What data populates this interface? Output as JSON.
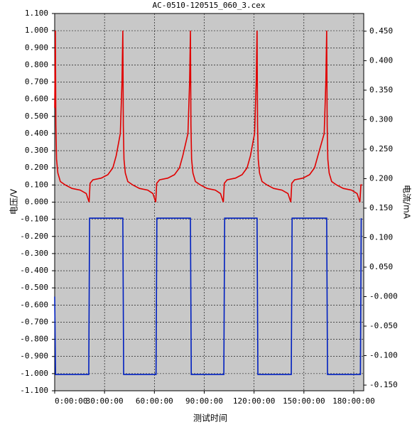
{
  "chart_data": {
    "type": "line",
    "title": "AC-0510-120515_060_3.cex",
    "x_label": "测试时间",
    "y_label": "电压/V",
    "y2_label": "电流/mA",
    "xlim": [
      0,
      186
    ],
    "xticks": [
      {
        "value": 0,
        "label": "0:00:00"
      },
      {
        "value": 30,
        "label": "30:00:00"
      },
      {
        "value": 60,
        "label": "60:00:00"
      },
      {
        "value": 90,
        "label": "90:00:00"
      },
      {
        "value": 120,
        "label": "120:00:00"
      },
      {
        "value": 150,
        "label": "150:00:00"
      },
      {
        "value": 180,
        "label": "180:00:00"
      }
    ],
    "ylim": [
      -1.1,
      1.1
    ],
    "yticks": [
      {
        "value": 1.1,
        "label": "1.100"
      },
      {
        "value": 1.0,
        "label": "1.000"
      },
      {
        "value": 0.9,
        "label": "0.900"
      },
      {
        "value": 0.8,
        "label": "0.800"
      },
      {
        "value": 0.7,
        "label": "0.700"
      },
      {
        "value": 0.6,
        "label": "0.600"
      },
      {
        "value": 0.5,
        "label": "0.500"
      },
      {
        "value": 0.4,
        "label": "0.400"
      },
      {
        "value": 0.3,
        "label": "0.300"
      },
      {
        "value": 0.2,
        "label": "0.200"
      },
      {
        "value": 0.1,
        "label": "0.100"
      },
      {
        "value": 0,
        "label": "0.000"
      },
      {
        "value": -0.1,
        "label": "-0.100"
      },
      {
        "value": -0.2,
        "label": "-0.200"
      },
      {
        "value": -0.3,
        "label": "-0.300"
      },
      {
        "value": -0.4,
        "label": "-0.400"
      },
      {
        "value": -0.5,
        "label": "-0.500"
      },
      {
        "value": -0.6,
        "label": "-0.600"
      },
      {
        "value": -0.7,
        "label": "-0.700"
      },
      {
        "value": -0.8,
        "label": "-0.800"
      },
      {
        "value": -0.9,
        "label": "-0.900"
      },
      {
        "value": -1.0,
        "label": "-1.000"
      },
      {
        "value": -1.1,
        "label": "-1.100"
      }
    ],
    "y2lim": [
      -0.1596,
      0.48
    ],
    "y2ticks": [
      {
        "value": 0.45,
        "label": "0.450"
      },
      {
        "value": 0.4,
        "label": "0.400"
      },
      {
        "value": 0.35,
        "label": "0.350"
      },
      {
        "value": 0.3,
        "label": "0.300"
      },
      {
        "value": 0.25,
        "label": "0.250"
      },
      {
        "value": 0.2,
        "label": "0.200"
      },
      {
        "value": 0.15,
        "label": "0.150"
      },
      {
        "value": 0.1,
        "label": "0.100"
      },
      {
        "value": 0.05,
        "label": "0.050"
      },
      {
        "value": 0,
        "label": "-0.000"
      },
      {
        "value": -0.05,
        "label": "-0.050"
      },
      {
        "value": -0.1,
        "label": "-0.100"
      },
      {
        "value": -0.15,
        "label": "-0.150"
      }
    ],
    "grid": true,
    "series": [
      {
        "color": "#e00000",
        "axis": "y",
        "x": [
          0,
          0.4,
          0.7,
          1.1,
          1.9,
          3.4,
          6.4,
          10.4,
          15.4,
          19,
          20.7,
          21.3,
          23,
          28,
          32,
          35,
          37,
          39.5,
          40.5,
          41,
          41.3,
          41.7,
          42.5,
          44,
          47,
          51,
          56,
          59.1,
          60.8,
          61.4,
          63.1,
          68.1,
          72.1,
          75.1,
          77.1,
          80.2,
          81.2,
          81.7,
          82,
          82.4,
          83.2,
          84.7,
          87.7,
          91.7,
          96.7,
          99.8,
          101.5,
          102.1,
          103.8,
          108.8,
          112.8,
          115.8,
          117.8,
          120.3,
          121.3,
          121.8,
          122.1,
          122.5,
          123.3,
          124.8,
          127.8,
          131.8,
          136.8,
          140.4,
          142.1,
          142.7,
          144.4,
          149.4,
          153.4,
          156.4,
          158.4,
          162.2,
          163.2,
          163.7,
          164,
          164.4,
          165.2,
          166.7,
          169.7,
          173.7,
          178.7,
          182,
          183.7,
          184.3,
          185
        ],
        "values": [
          0.55,
          1.0,
          0.45,
          0.25,
          0.17,
          0.12,
          0.1,
          0.08,
          0.07,
          0.05,
          0.0,
          0.11,
          0.13,
          0.14,
          0.16,
          0.2,
          0.27,
          0.4,
          0.7,
          1.0,
          0.45,
          0.25,
          0.17,
          0.12,
          0.1,
          0.08,
          0.07,
          0.05,
          0.0,
          0.11,
          0.13,
          0.14,
          0.16,
          0.2,
          0.27,
          0.4,
          0.7,
          1.0,
          0.45,
          0.25,
          0.17,
          0.12,
          0.1,
          0.08,
          0.07,
          0.05,
          0.0,
          0.11,
          0.13,
          0.14,
          0.16,
          0.2,
          0.27,
          0.4,
          0.7,
          1.0,
          0.45,
          0.25,
          0.17,
          0.12,
          0.1,
          0.08,
          0.07,
          0.05,
          0.0,
          0.11,
          0.13,
          0.14,
          0.16,
          0.2,
          0.27,
          0.4,
          0.7,
          1.0,
          0.45,
          0.25,
          0.17,
          0.12,
          0.1,
          0.08,
          0.07,
          0.05,
          0.0,
          0.1,
          0.1
        ]
      },
      {
        "color": "#0020c0",
        "axis": "y2",
        "x": [
          0,
          0.5,
          20.5,
          21,
          41,
          41.5,
          61,
          61.5,
          81.7,
          82.2,
          101.8,
          102.3,
          121.8,
          122.3,
          142.4,
          142.9,
          163.7,
          164.2,
          184,
          184.5
        ],
        "values": [
          0.0,
          -0.132,
          -0.132,
          0.133,
          0.133,
          -0.132,
          -0.132,
          0.133,
          0.133,
          -0.132,
          -0.132,
          0.133,
          0.133,
          -0.132,
          -0.132,
          0.133,
          0.133,
          -0.132,
          -0.132,
          0.133
        ]
      }
    ]
  }
}
